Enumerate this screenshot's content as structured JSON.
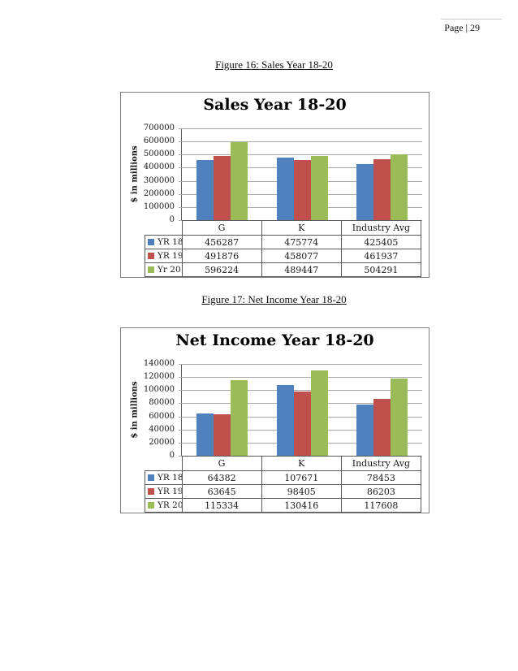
{
  "page": {
    "header": "Page | 29"
  },
  "captions": [
    "Figure 16: Sales Year 18-20",
    "Figure 17: Net Income Year 18-20"
  ],
  "chart_data": [
    {
      "type": "bar",
      "title": "Sales Year 18-20",
      "ylabel": "$ in millions",
      "categories": [
        "G",
        "K",
        "Industry Avg"
      ],
      "series": [
        {
          "name": "YR 18",
          "color": "#4F81BD",
          "values": [
            456287,
            475774,
            425405
          ]
        },
        {
          "name": "YR 19",
          "color": "#C0504D",
          "values": [
            491876,
            458077,
            461937
          ]
        },
        {
          "name": "Yr 20",
          "color": "#9BBB59",
          "values": [
            596224,
            489447,
            504291
          ]
        }
      ],
      "ylim": [
        0,
        700000
      ],
      "ytick_step": 100000,
      "grid": true,
      "legend_position": "table-left",
      "data_table": true
    },
    {
      "type": "bar",
      "title": "Net Income Year 18-20",
      "ylabel": "$ in millions",
      "categories": [
        "G",
        "K",
        "Industry Avg"
      ],
      "series": [
        {
          "name": "YR 18",
          "color": "#4F81BD",
          "values": [
            64382,
            107671,
            78453
          ]
        },
        {
          "name": "YR 19",
          "color": "#C0504D",
          "values": [
            63645,
            98405,
            86203
          ]
        },
        {
          "name": "YR 20",
          "color": "#9BBB59",
          "values": [
            115334,
            130416,
            117608
          ]
        }
      ],
      "ylim": [
        0,
        140000
      ],
      "ytick_step": 20000,
      "grid": true,
      "legend_position": "table-left",
      "data_table": true
    }
  ]
}
